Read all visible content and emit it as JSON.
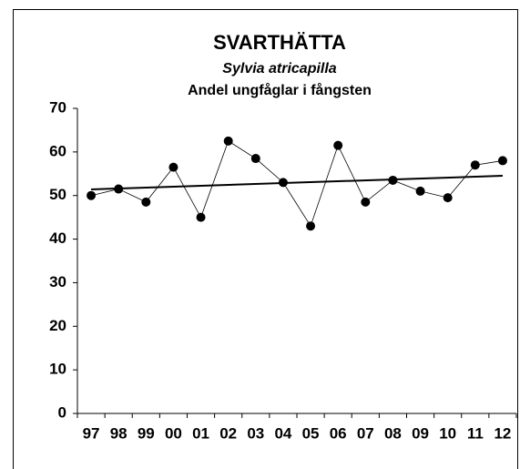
{
  "chart_data": {
    "type": "line",
    "title": "SVARTHÄTTA",
    "subtitle": "Sylvia atricapilla",
    "subtitle2": "Andel ungfåglar i fångsten",
    "categories": [
      "97",
      "98",
      "99",
      "00",
      "01",
      "02",
      "03",
      "04",
      "05",
      "06",
      "07",
      "08",
      "09",
      "10",
      "11",
      "12"
    ],
    "values": [
      50,
      51.5,
      48.5,
      56.5,
      45,
      62.5,
      58.5,
      53,
      43,
      61.5,
      48.5,
      53.5,
      51,
      49.5,
      57,
      58
    ],
    "color": "#000000",
    "trendline": true,
    "ylim": [
      0,
      70
    ],
    "yticks": [
      0,
      10,
      20,
      30,
      40,
      50,
      60,
      70
    ]
  }
}
